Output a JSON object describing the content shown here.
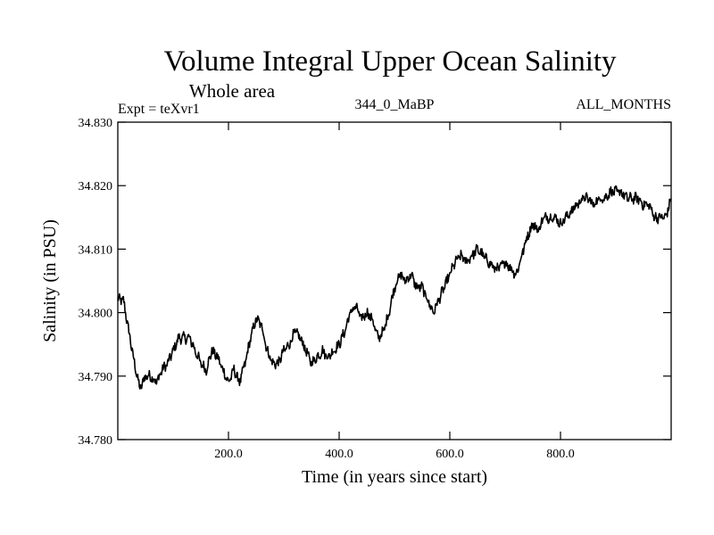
{
  "chart_data": {
    "type": "line",
    "title": "Volume Integral Upper Ocean Salinity",
    "subtitle": "Whole area",
    "expt_label": "Expt = teXvr1",
    "run_label": "344_0_MaBP",
    "months_label": "ALL_MONTHS",
    "xlabel": "Time (in years since start)",
    "ylabel": "Salinity (in PSU)",
    "xlim": [
      0,
      1000
    ],
    "ylim": [
      34.78,
      34.83
    ],
    "xticks": [
      200,
      400,
      600,
      800
    ],
    "xtick_labels": [
      "200.0",
      "400.0",
      "600.0",
      "800.0"
    ],
    "yticks": [
      34.78,
      34.79,
      34.8,
      34.81,
      34.82,
      34.83
    ],
    "ytick_labels": [
      "34.780",
      "34.790",
      "34.800",
      "34.810",
      "34.820",
      "34.830"
    ],
    "line_color": "#000000",
    "series": [
      {
        "name": "Salinity",
        "x": [
          0,
          10,
          20,
          30,
          40,
          50,
          60,
          70,
          80,
          90,
          100,
          110,
          120,
          130,
          140,
          150,
          160,
          170,
          180,
          190,
          200,
          210,
          220,
          230,
          240,
          250,
          260,
          270,
          280,
          290,
          300,
          310,
          320,
          330,
          340,
          350,
          360,
          370,
          380,
          390,
          400,
          410,
          420,
          430,
          440,
          450,
          460,
          470,
          480,
          490,
          500,
          510,
          520,
          530,
          540,
          550,
          560,
          570,
          580,
          590,
          600,
          610,
          620,
          630,
          640,
          650,
          660,
          670,
          680,
          690,
          700,
          710,
          720,
          730,
          740,
          750,
          760,
          770,
          780,
          790,
          800,
          810,
          820,
          830,
          840,
          850,
          860,
          870,
          880,
          890,
          900,
          910,
          920,
          930,
          940,
          950,
          960,
          970,
          980,
          990,
          1000
        ],
        "values": [
          34.802,
          34.802,
          34.797,
          34.792,
          34.788,
          34.79,
          34.79,
          34.789,
          34.791,
          34.792,
          34.794,
          34.796,
          34.796,
          34.796,
          34.794,
          34.792,
          34.791,
          34.794,
          34.793,
          34.791,
          34.789,
          34.791,
          34.789,
          34.792,
          34.796,
          34.799,
          34.798,
          34.794,
          34.792,
          34.792,
          34.794,
          34.795,
          34.797,
          34.796,
          34.794,
          34.792,
          34.793,
          34.794,
          34.793,
          34.794,
          34.795,
          34.797,
          34.8,
          34.801,
          34.799,
          34.8,
          34.799,
          34.796,
          34.797,
          34.8,
          34.804,
          34.806,
          34.805,
          34.806,
          34.804,
          34.804,
          34.802,
          34.8,
          34.802,
          34.804,
          34.806,
          34.808,
          34.809,
          34.808,
          34.809,
          34.81,
          34.809,
          34.808,
          34.807,
          34.807,
          34.808,
          34.807,
          34.806,
          34.809,
          34.812,
          34.814,
          34.813,
          34.815,
          34.815,
          34.815,
          34.814,
          34.815,
          34.816,
          34.817,
          34.818,
          34.818,
          34.817,
          34.818,
          34.818,
          34.819,
          34.819,
          34.819,
          34.818,
          34.818,
          34.818,
          34.817,
          34.817,
          34.815,
          34.815,
          34.815,
          34.818
        ]
      }
    ]
  }
}
